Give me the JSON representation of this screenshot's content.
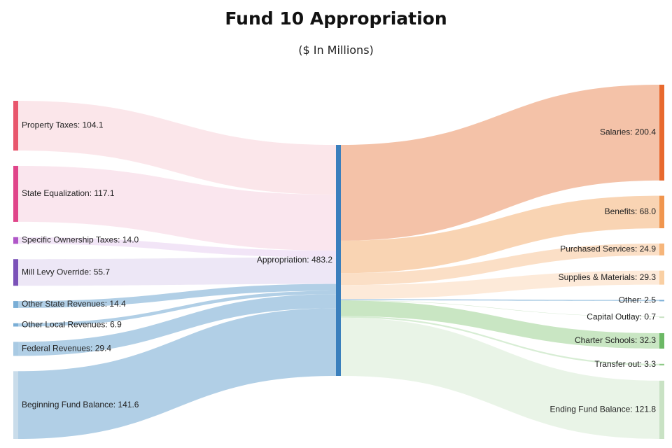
{
  "chart_data": {
    "type": "sankey",
    "title": "Fund 10 Appropriation",
    "subtitle": "($ In Millions)",
    "center": {
      "name": "Appropriation",
      "value": 483.2,
      "color": "#3a7fbd"
    },
    "sources": [
      {
        "name": "Property Taxes",
        "value": 104.1,
        "color": "#e8566c",
        "band": "#fbe3e8"
      },
      {
        "name": "State Equalization",
        "value": 117.1,
        "color": "#e0458a",
        "band": "#fae3ec"
      },
      {
        "name": "Specific Ownership Taxes",
        "value": 14.0,
        "color": "#b057c8",
        "band": "#f1e2f6"
      },
      {
        "name": "Mill Levy Override",
        "value": 55.7,
        "color": "#7b52b8",
        "band": "#ebe4f5"
      },
      {
        "name": "Other State Revenues",
        "value": 14.4,
        "color": "#7aaed6",
        "band": "#a9cae3"
      },
      {
        "name": "Other Local Revenues",
        "value": 6.9,
        "color": "#7aaed6",
        "band": "#a9cae3"
      },
      {
        "name": "Federal Revenues",
        "value": 29.4,
        "color": "#a9cae3",
        "band": "#a9cae3"
      },
      {
        "name": "Beginning Fund Balance",
        "value": 141.6,
        "color": "#c9dcea",
        "band": "#a9cae3"
      }
    ],
    "targets": [
      {
        "name": "Salaries",
        "value": 200.4,
        "color": "#e8692e",
        "band": "#f3bb9e"
      },
      {
        "name": "Benefits",
        "value": 68.0,
        "color": "#f0954e",
        "band": "#f8cfab"
      },
      {
        "name": "Purchased Services",
        "value": 24.9,
        "color": "#f6b57a",
        "band": "#fbdcc0"
      },
      {
        "name": "Supplies & Materials",
        "value": 29.3,
        "color": "#f9cfa3",
        "band": "#fde8d5"
      },
      {
        "name": "Other",
        "value": 2.5,
        "color": "#7aaed6",
        "band": "#a9cae3"
      },
      {
        "name": "Capital Outlay",
        "value": 0.7,
        "color": "#c9e2c4",
        "band": "#c9e2c4"
      },
      {
        "name": "Charter Schools",
        "value": 32.3,
        "color": "#6cb865",
        "band": "#c3e3bd"
      },
      {
        "name": "Transfer out",
        "value": 3.3,
        "color": "#8fca88",
        "band": "#d3ebcf"
      },
      {
        "name": "Ending Fund Balance",
        "value": 121.8,
        "color": "#c9e2c4",
        "band": "#e7f3e4"
      }
    ]
  }
}
